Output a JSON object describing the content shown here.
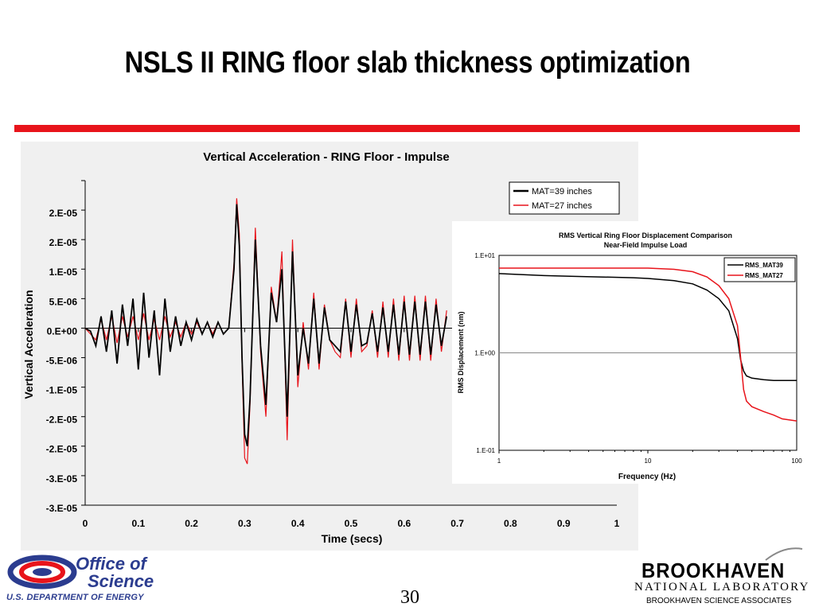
{
  "slide": {
    "title": "NSLS II RING floor slab thickness optimization",
    "page_number": "30"
  },
  "footer": {
    "office_line1": "Office of",
    "office_line2": "Science",
    "doe_line": "U.S. DEPARTMENT OF ENERGY",
    "bnl_name": "BROOKHAVEN",
    "bnl_lab": "NATIONAL LABORATORY",
    "bnl_assoc": "BROOKHAVEN SCIENCE ASSOCIATES"
  },
  "colors": {
    "accent_red": "#e8141b",
    "doe_blue": "#2b3c8f",
    "series_black": "#000000",
    "series_red": "#e8141b"
  },
  "chart_data": [
    {
      "type": "line",
      "title": "Vertical Acceleration - RING Floor - Impulse",
      "xlabel": "Time (secs)",
      "ylabel": "Vertical Acceleration",
      "xlim": [
        0,
        1
      ],
      "ylim": [
        -3e-05,
        2.5e-05
      ],
      "x_ticks": [
        "0",
        "0.1",
        "0.2",
        "0.3",
        "0.4",
        "0.5",
        "0.6",
        "0.7",
        "0.8",
        "0.9",
        "1"
      ],
      "y_ticks": [
        "2.E-05",
        "2.E-05",
        "1.E-05",
        "5.E-06",
        "0.E+00",
        "-5.E-06",
        "-1.E-05",
        "-2.E-05",
        "-2.E-05",
        "-3.E-05",
        "-3.E-05"
      ],
      "y_tick_values": [
        2.5e-05,
        2e-05,
        1.5e-05,
        1e-05,
        5e-06,
        0,
        -5e-06,
        -1e-05,
        -1.5e-05,
        -2e-05,
        -2.5e-05,
        -3e-05
      ],
      "legend_position": "top-right",
      "grid": false,
      "series": [
        {
          "name": "MAT=39 inches",
          "color": "#000000",
          "x": [
            0,
            0.01,
            0.02,
            0.03,
            0.04,
            0.05,
            0.06,
            0.07,
            0.08,
            0.09,
            0.1,
            0.11,
            0.12,
            0.13,
            0.14,
            0.15,
            0.16,
            0.17,
            0.18,
            0.19,
            0.2,
            0.21,
            0.22,
            0.23,
            0.24,
            0.25,
            0.26,
            0.27,
            0.28,
            0.285,
            0.29,
            0.295,
            0.3,
            0.305,
            0.31,
            0.32,
            0.33,
            0.34,
            0.35,
            0.36,
            0.37,
            0.38,
            0.39,
            0.4,
            0.41,
            0.42,
            0.43,
            0.44,
            0.45,
            0.46,
            0.47,
            0.48,
            0.49,
            0.5,
            0.51,
            0.52,
            0.53,
            0.54,
            0.55,
            0.56,
            0.57,
            0.58,
            0.59,
            0.6,
            0.61,
            0.62,
            0.63,
            0.64,
            0.65,
            0.66,
            0.67,
            0.68
          ],
          "y": [
            0,
            -5e-07,
            -3e-06,
            2e-06,
            -4e-06,
            3e-06,
            -6e-06,
            4e-06,
            -3e-06,
            5e-06,
            -7e-06,
            6e-06,
            -5e-06,
            3e-06,
            -8e-06,
            5e-06,
            -4e-06,
            2e-06,
            -3e-06,
            1e-06,
            -2e-06,
            1.5e-06,
            -1e-06,
            1e-06,
            -1.5e-06,
            1e-06,
            -1e-06,
            0,
            1e-05,
            2.1e-05,
            1.4e-05,
            -5e-06,
            -1.8e-05,
            -2e-05,
            -1.2e-05,
            1.5e-05,
            -3e-06,
            -1.3e-05,
            6e-06,
            1e-06,
            1e-05,
            -1.5e-05,
            1.3e-05,
            -8e-06,
            0,
            -6e-06,
            5e-06,
            -6e-06,
            3.5e-06,
            -2e-06,
            -3e-06,
            -4e-06,
            4.5e-06,
            -4e-06,
            4e-06,
            -3e-06,
            -2.5e-06,
            2.5e-06,
            -4e-06,
            3.5e-06,
            -4e-06,
            4e-06,
            -4.5e-06,
            4.5e-06,
            -4.5e-06,
            4.5e-06,
            -4.5e-06,
            4.5e-06,
            -4.5e-06,
            4e-06,
            -3e-06,
            2e-06
          ]
        },
        {
          "name": "MAT=27 inches",
          "color": "#e8141b",
          "x": [
            0,
            0.01,
            0.02,
            0.03,
            0.04,
            0.05,
            0.06,
            0.07,
            0.08,
            0.09,
            0.1,
            0.11,
            0.12,
            0.13,
            0.14,
            0.15,
            0.16,
            0.17,
            0.18,
            0.19,
            0.2,
            0.21,
            0.22,
            0.23,
            0.24,
            0.25,
            0.26,
            0.27,
            0.28,
            0.285,
            0.29,
            0.295,
            0.3,
            0.305,
            0.31,
            0.32,
            0.33,
            0.34,
            0.35,
            0.36,
            0.37,
            0.38,
            0.39,
            0.4,
            0.41,
            0.42,
            0.43,
            0.44,
            0.45,
            0.46,
            0.47,
            0.48,
            0.49,
            0.5,
            0.51,
            0.52,
            0.53,
            0.54,
            0.55,
            0.56,
            0.57,
            0.58,
            0.59,
            0.6,
            0.61,
            0.62,
            0.63,
            0.64,
            0.65,
            0.66,
            0.67,
            0.68
          ],
          "y": [
            0,
            -1e-06,
            -2e-06,
            1.5e-06,
            -2e-06,
            2e-06,
            -2.5e-06,
            2e-06,
            -1.5e-06,
            2e-06,
            -2e-06,
            2.5e-06,
            -2e-06,
            1.5e-06,
            -2e-06,
            2e-06,
            -1.5e-06,
            1e-06,
            -1.5e-06,
            1e-06,
            -1e-06,
            1e-06,
            -1e-06,
            1e-06,
            -1e-06,
            1e-06,
            -1e-06,
            0,
            1.1e-05,
            2.2e-05,
            1.6e-05,
            -6e-06,
            -2.2e-05,
            -2.3e-05,
            -1.3e-05,
            1.7e-05,
            -4e-06,
            -1.5e-05,
            7e-06,
            1e-06,
            1.3e-05,
            -1.9e-05,
            1.5e-05,
            -1e-05,
            1e-06,
            -7e-06,
            6e-06,
            -7e-06,
            4e-06,
            -2e-06,
            -4e-06,
            -5e-06,
            5e-06,
            -5e-06,
            5e-06,
            -4e-06,
            -3e-06,
            3e-06,
            -5e-06,
            4.5e-06,
            -5e-06,
            5e-06,
            -5.5e-06,
            5.5e-06,
            -5.5e-06,
            5.5e-06,
            -5.5e-06,
            5.5e-06,
            -5.5e-06,
            5e-06,
            -4e-06,
            3e-06
          ]
        }
      ]
    },
    {
      "type": "line",
      "title": "RMS Vertical Ring Floor Displacement Comparison",
      "subtitle": "Near-Field Impulse Load",
      "xlabel": "Frequency (Hz)",
      "ylabel": "RMS Displacement (nm)",
      "xscale": "log",
      "yscale": "log",
      "xlim": [
        1,
        100
      ],
      "ylim": [
        0.1,
        10
      ],
      "x_ticks": [
        "1",
        "10",
        "100"
      ],
      "y_ticks": [
        "1.E+01",
        "1.E+00",
        "1.E-01"
      ],
      "legend_position": "top-right",
      "grid": true,
      "series": [
        {
          "name": "RMS_MAT39",
          "color": "#000000",
          "x": [
            1,
            2,
            3,
            5,
            8,
            10,
            15,
            20,
            25,
            30,
            35,
            40,
            42,
            44,
            46,
            50,
            60,
            70,
            80,
            100
          ],
          "y": [
            6.5,
            6.2,
            6.1,
            6.0,
            5.9,
            5.8,
            5.5,
            5.1,
            4.4,
            3.6,
            2.7,
            1.4,
            0.85,
            0.65,
            0.58,
            0.55,
            0.53,
            0.52,
            0.52,
            0.52
          ]
        },
        {
          "name": "RMS_MAT27",
          "color": "#e8141b",
          "x": [
            1,
            2,
            3,
            5,
            8,
            10,
            15,
            20,
            25,
            30,
            35,
            40,
            42,
            44,
            46,
            50,
            60,
            70,
            80,
            100
          ],
          "y": [
            7.4,
            7.4,
            7.4,
            7.4,
            7.4,
            7.4,
            7.2,
            6.8,
            6.0,
            4.9,
            3.6,
            1.9,
            0.9,
            0.42,
            0.32,
            0.28,
            0.25,
            0.23,
            0.21,
            0.2
          ]
        }
      ]
    }
  ]
}
